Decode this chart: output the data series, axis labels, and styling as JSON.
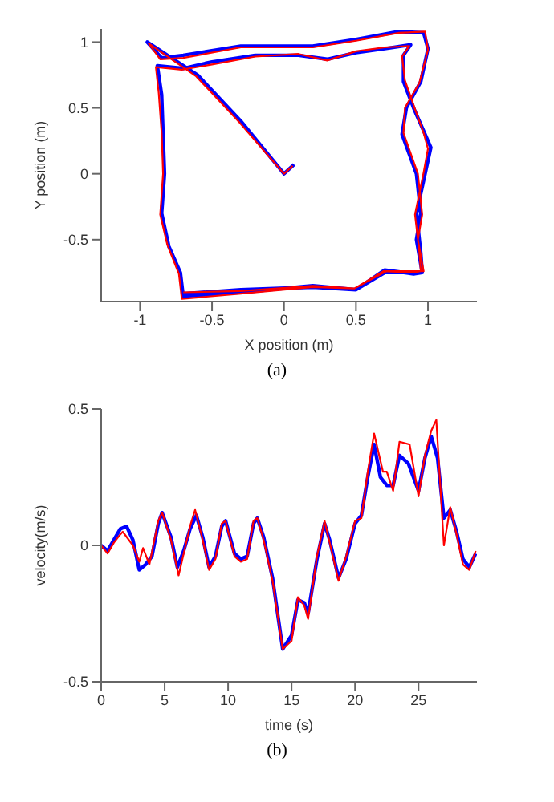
{
  "chart_data": [
    {
      "type": "line",
      "xlabel": "X position (m)",
      "ylabel": "Y position (m)",
      "xlim": [
        -1.27,
        1.34
      ],
      "ylim": [
        -0.97,
        1.1
      ],
      "xticks": [
        -1,
        -0.5,
        0,
        0.5,
        1
      ],
      "yticks": [
        -0.5,
        0,
        0.5,
        1
      ],
      "grid": false,
      "legend": false,
      "annotations": [
        "(a)"
      ],
      "series": [
        {
          "color": "#0000ff",
          "x": [
            0.07,
            0.0,
            -0.3,
            -0.6,
            -0.95,
            -0.85,
            -0.7,
            -0.3,
            0.2,
            0.5,
            0.8,
            0.97,
            1.0,
            0.95,
            0.85,
            0.82,
            0.92,
            0.95,
            0.92,
            0.96,
            0.7,
            0.5,
            0.2,
            -0.3,
            -0.7,
            -0.72,
            -0.8,
            -0.85,
            -0.83,
            -0.84,
            -0.85,
            -0.88,
            -0.7,
            -0.5,
            -0.2,
            0.1,
            0.3,
            0.5,
            0.7,
            0.88,
            0.83,
            0.83,
            0.9,
            0.98,
            1.02,
            0.98,
            0.92,
            0.95,
            0.96,
            0.9,
            0.7,
            0.5,
            0.2,
            -0.3,
            -0.7
          ],
          "values": [
            0.07,
            0.0,
            0.4,
            0.75,
            1.0,
            0.88,
            0.9,
            0.97,
            0.97,
            1.02,
            1.08,
            1.07,
            0.95,
            0.7,
            0.5,
            0.3,
            0.0,
            -0.3,
            -0.5,
            -0.75,
            -0.75,
            -0.88,
            -0.85,
            -0.9,
            -0.93,
            -0.75,
            -0.55,
            -0.3,
            0.0,
            0.3,
            0.6,
            0.82,
            0.8,
            0.85,
            0.9,
            0.9,
            0.87,
            0.92,
            0.95,
            0.98,
            0.9,
            0.7,
            0.5,
            0.3,
            0.2,
            0.0,
            -0.3,
            -0.6,
            -0.75,
            -0.76,
            -0.73,
            -0.88,
            -0.86,
            -0.88,
            -0.91
          ]
        },
        {
          "color": "#ff0000",
          "x": [
            0.06,
            0.0,
            -0.31,
            -0.61,
            -0.94,
            -0.86,
            -0.7,
            -0.3,
            0.2,
            0.5,
            0.8,
            0.98,
            1.0,
            0.94,
            0.84,
            0.83,
            0.93,
            0.96,
            0.93,
            0.97,
            0.71,
            0.49,
            0.2,
            -0.3,
            -0.71,
            -0.73,
            -0.81,
            -0.86,
            -0.84,
            -0.85,
            -0.87,
            -0.89,
            -0.71,
            -0.5,
            -0.2,
            0.1,
            0.3,
            0.5,
            0.7,
            0.87,
            0.82,
            0.84,
            0.91,
            0.97,
            1.0,
            0.97,
            0.91,
            0.94,
            0.95,
            0.89,
            0.69,
            0.49,
            0.2,
            -0.3,
            -0.7
          ],
          "values": [
            0.06,
            0.0,
            0.39,
            0.74,
            0.99,
            0.87,
            0.88,
            0.96,
            0.96,
            1.01,
            1.07,
            1.08,
            0.94,
            0.69,
            0.5,
            0.31,
            0.0,
            -0.31,
            -0.5,
            -0.74,
            -0.74,
            -0.87,
            -0.86,
            -0.91,
            -0.95,
            -0.76,
            -0.54,
            -0.31,
            0.0,
            0.31,
            0.61,
            0.81,
            0.79,
            0.83,
            0.89,
            0.91,
            0.86,
            0.93,
            0.96,
            0.97,
            0.89,
            0.71,
            0.49,
            0.31,
            0.19,
            0.01,
            -0.31,
            -0.59,
            -0.74,
            -0.75,
            -0.74,
            -0.87,
            -0.85,
            -0.89,
            -0.9
          ]
        }
      ]
    },
    {
      "type": "line",
      "xlabel": "time (s)",
      "ylabel": "velocity(m/s)",
      "xlim": [
        0,
        29.6
      ],
      "ylim": [
        -0.5,
        0.5
      ],
      "xticks": [
        0,
        5,
        10,
        15,
        20,
        25
      ],
      "yticks": [
        -0.5,
        0,
        0.5
      ],
      "grid": false,
      "legend": false,
      "annotations": [
        "(b)"
      ],
      "series": [
        {
          "color": "#0000ff",
          "x": [
            0,
            0.5,
            1,
            1.5,
            2,
            2.5,
            3,
            3.5,
            4,
            4.5,
            4.8,
            5.5,
            6,
            6.5,
            7,
            7.5,
            8,
            8.5,
            9,
            9.5,
            9.8,
            10.5,
            11,
            11.5,
            12,
            12.3,
            12.8,
            13.5,
            14.3,
            15,
            15.5,
            16,
            16.3,
            17,
            17.6,
            18,
            18.7,
            19.3,
            20,
            20.5,
            21,
            21.5,
            22,
            22.5,
            23,
            23.5,
            24.2,
            25,
            25.5,
            26,
            26.5,
            27,
            27.5,
            28,
            28.5,
            29,
            29.5
          ],
          "values": [
            0,
            -0.02,
            0.02,
            0.06,
            0.07,
            0.02,
            -0.09,
            -0.07,
            -0.04,
            0.08,
            0.12,
            0.03,
            -0.08,
            -0.02,
            0.06,
            0.11,
            0.03,
            -0.08,
            -0.04,
            0.07,
            0.09,
            -0.03,
            -0.05,
            -0.04,
            0.08,
            0.1,
            0.03,
            -0.12,
            -0.38,
            -0.33,
            -0.2,
            -0.21,
            -0.25,
            -0.05,
            0.08,
            0.02,
            -0.12,
            -0.05,
            0.08,
            0.11,
            0.25,
            0.37,
            0.25,
            0.22,
            0.22,
            0.33,
            0.3,
            0.2,
            0.32,
            0.4,
            0.32,
            0.1,
            0.13,
            0.05,
            -0.05,
            -0.08,
            -0.03
          ]
        },
        {
          "color": "#ff0000",
          "x": [
            0,
            0.5,
            1,
            1.5,
            1.7,
            2.5,
            3,
            3.3,
            3.8,
            4.5,
            4.8,
            5.5,
            6.1,
            6.5,
            7,
            7.4,
            8,
            8.5,
            9,
            9.5,
            9.8,
            10.5,
            11,
            11.5,
            12,
            12.3,
            12.8,
            13.5,
            14.3,
            15,
            15.5,
            16,
            16.3,
            17,
            17.6,
            18,
            18.7,
            19.3,
            20,
            20.5,
            21,
            21.5,
            22.2,
            22.5,
            23,
            23.5,
            24.3,
            25,
            25.5,
            26,
            26.4,
            27,
            27.5,
            28,
            28.5,
            29,
            29.5
          ],
          "values": [
            0,
            -0.03,
            0.01,
            0.04,
            0.05,
            0.0,
            -0.06,
            -0.01,
            -0.07,
            0.09,
            0.12,
            0.02,
            -0.11,
            -0.03,
            0.07,
            0.13,
            0.02,
            -0.09,
            -0.05,
            0.08,
            0.09,
            -0.04,
            -0.06,
            -0.05,
            0.09,
            0.1,
            0.02,
            -0.13,
            -0.38,
            -0.35,
            -0.19,
            -0.22,
            -0.27,
            -0.04,
            0.09,
            0.01,
            -0.13,
            -0.04,
            0.09,
            0.1,
            0.27,
            0.41,
            0.27,
            0.27,
            0.2,
            0.38,
            0.37,
            0.18,
            0.33,
            0.42,
            0.46,
            0.0,
            0.14,
            0.04,
            -0.07,
            -0.09,
            -0.02
          ]
        }
      ]
    }
  ]
}
